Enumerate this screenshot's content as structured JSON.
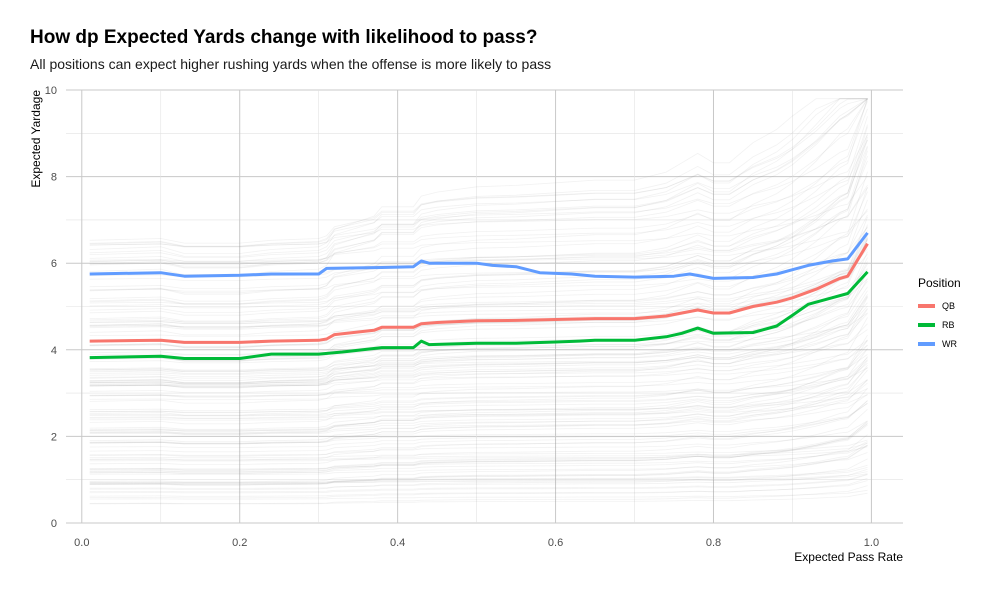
{
  "chart_data": {
    "type": "line",
    "title": "How dp Expected Yards change with likelihood to pass?",
    "subtitle": "All positions can expect higher rushing yards when the offense is more likely to pass",
    "xlabel": "Expected Pass Rate",
    "ylabel": "Expected Yardage",
    "xlim": [
      -0.02,
      1.04
    ],
    "ylim": [
      0,
      10
    ],
    "xticks": [
      "0.0",
      "0.2",
      "0.4",
      "0.6",
      "0.8",
      "1.0"
    ],
    "yticks": [
      "0",
      "2",
      "4",
      "6",
      "8",
      "10"
    ],
    "grid": true,
    "legend": {
      "title": "Position",
      "placement": "right"
    },
    "series": [
      {
        "name": "QB",
        "color": "#F8766D",
        "points": [
          [
            0.01,
            4.2
          ],
          [
            0.1,
            4.22
          ],
          [
            0.13,
            4.17
          ],
          [
            0.2,
            4.17
          ],
          [
            0.24,
            4.2
          ],
          [
            0.3,
            4.22
          ],
          [
            0.31,
            4.25
          ],
          [
            0.32,
            4.35
          ],
          [
            0.37,
            4.45
          ],
          [
            0.38,
            4.52
          ],
          [
            0.42,
            4.52
          ],
          [
            0.43,
            4.6
          ],
          [
            0.45,
            4.63
          ],
          [
            0.5,
            4.67
          ],
          [
            0.55,
            4.68
          ],
          [
            0.6,
            4.7
          ],
          [
            0.65,
            4.72
          ],
          [
            0.7,
            4.72
          ],
          [
            0.74,
            4.78
          ],
          [
            0.76,
            4.85
          ],
          [
            0.78,
            4.92
          ],
          [
            0.8,
            4.85
          ],
          [
            0.82,
            4.85
          ],
          [
            0.85,
            5.0
          ],
          [
            0.88,
            5.1
          ],
          [
            0.9,
            5.2
          ],
          [
            0.93,
            5.4
          ],
          [
            0.96,
            5.65
          ],
          [
            0.97,
            5.7
          ],
          [
            0.995,
            6.45
          ]
        ]
      },
      {
        "name": "RB",
        "color": "#00BA38",
        "points": [
          [
            0.01,
            3.82
          ],
          [
            0.1,
            3.85
          ],
          [
            0.13,
            3.8
          ],
          [
            0.2,
            3.8
          ],
          [
            0.24,
            3.9
          ],
          [
            0.3,
            3.9
          ],
          [
            0.33,
            3.95
          ],
          [
            0.38,
            4.05
          ],
          [
            0.42,
            4.05
          ],
          [
            0.43,
            4.2
          ],
          [
            0.44,
            4.12
          ],
          [
            0.5,
            4.15
          ],
          [
            0.55,
            4.15
          ],
          [
            0.6,
            4.18
          ],
          [
            0.63,
            4.2
          ],
          [
            0.65,
            4.22
          ],
          [
            0.7,
            4.22
          ],
          [
            0.74,
            4.3
          ],
          [
            0.76,
            4.38
          ],
          [
            0.78,
            4.5
          ],
          [
            0.8,
            4.38
          ],
          [
            0.85,
            4.4
          ],
          [
            0.88,
            4.55
          ],
          [
            0.9,
            4.8
          ],
          [
            0.92,
            5.05
          ],
          [
            0.95,
            5.2
          ],
          [
            0.97,
            5.3
          ],
          [
            0.995,
            5.8
          ]
        ]
      },
      {
        "name": "WR",
        "color": "#619CFF",
        "points": [
          [
            0.01,
            5.75
          ],
          [
            0.1,
            5.78
          ],
          [
            0.13,
            5.7
          ],
          [
            0.2,
            5.72
          ],
          [
            0.24,
            5.75
          ],
          [
            0.3,
            5.75
          ],
          [
            0.31,
            5.88
          ],
          [
            0.38,
            5.9
          ],
          [
            0.42,
            5.92
          ],
          [
            0.43,
            6.05
          ],
          [
            0.44,
            6.0
          ],
          [
            0.5,
            6.0
          ],
          [
            0.52,
            5.95
          ],
          [
            0.55,
            5.92
          ],
          [
            0.58,
            5.78
          ],
          [
            0.62,
            5.75
          ],
          [
            0.65,
            5.7
          ],
          [
            0.7,
            5.68
          ],
          [
            0.75,
            5.7
          ],
          [
            0.77,
            5.75
          ],
          [
            0.8,
            5.65
          ],
          [
            0.85,
            5.67
          ],
          [
            0.88,
            5.75
          ],
          [
            0.9,
            5.85
          ],
          [
            0.92,
            5.95
          ],
          [
            0.95,
            6.05
          ],
          [
            0.97,
            6.1
          ],
          [
            0.995,
            6.7
          ]
        ]
      }
    ]
  }
}
